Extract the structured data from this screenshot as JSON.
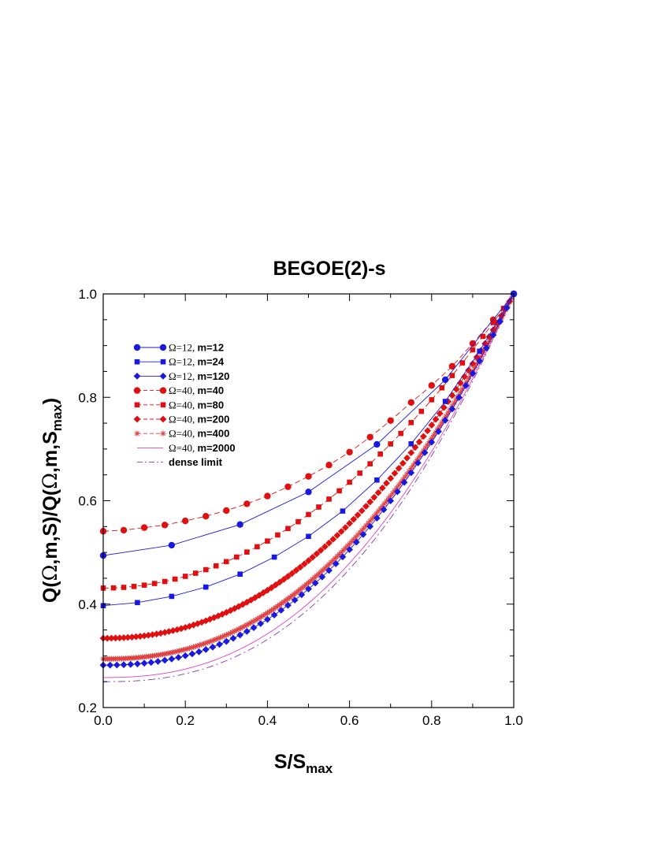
{
  "chart_data": {
    "type": "line",
    "title": "BEGOE(2)-s",
    "xlabel": "S/S_max",
    "ylabel": "Q(Ω,m,S)/Q(Ω,m,S_max)",
    "xlim": [
      0.0,
      1.0
    ],
    "ylim": [
      0.2,
      1.0
    ],
    "x_ticks": [
      "0.0",
      "0.2",
      "0.4",
      "0.6",
      "0.8",
      "1.0"
    ],
    "y_ticks": [
      "0.2",
      "0.4",
      "0.6",
      "0.8",
      "1.0"
    ],
    "grid": false,
    "legend_position": "top-left",
    "series": [
      {
        "name": "Ω=12, m=12",
        "omega_text": "Ω=12, ",
        "m_text": "m=12",
        "color": "#1a1adf",
        "marker": "circle",
        "dash": "solid",
        "line": true,
        "x": [
          0,
          0.1667,
          0.3333,
          0.5,
          0.6667,
          0.8333,
          1.0
        ],
        "y": [
          0.494,
          0.514,
          0.554,
          0.617,
          0.709,
          0.834,
          1.0
        ]
      },
      {
        "name": "Ω=12, m=24",
        "omega_text": "Ω=12, ",
        "m_text": "m=24",
        "color": "#1a1adf",
        "marker": "square",
        "dash": "solid",
        "line": true,
        "x": [
          0,
          0.0833,
          0.1667,
          0.25,
          0.3333,
          0.4167,
          0.5,
          0.5833,
          0.6667,
          0.75,
          0.8333,
          0.9167,
          1.0
        ],
        "y": [
          0.397,
          0.403,
          0.415,
          0.433,
          0.458,
          0.491,
          0.531,
          0.58,
          0.64,
          0.71,
          0.792,
          0.889,
          1.0
        ]
      },
      {
        "name": "Ω=12, m=120",
        "omega_text": "Ω=12, ",
        "m_text": "m=120",
        "color": "#1a1adf",
        "marker": "diamond",
        "dash": "solid",
        "line": true,
        "model": [
          0.282,
          2.285
        ],
        "step": 0.016667
      },
      {
        "name": "Ω=40, m=40",
        "omega_text": "Ω=40, ",
        "m_text": "m=40",
        "color": "#e01010",
        "marker": "circle",
        "dash": "dashed",
        "line": true,
        "x": [
          0,
          0.05,
          0.1,
          0.15,
          0.2,
          0.25,
          0.3,
          0.35,
          0.4,
          0.45,
          0.5,
          0.55,
          0.6,
          0.65,
          0.7,
          0.75,
          0.8,
          0.85,
          0.9,
          0.95,
          1.0
        ],
        "y": [
          0.541,
          0.543,
          0.548,
          0.553,
          0.561,
          0.57,
          0.581,
          0.594,
          0.609,
          0.627,
          0.647,
          0.669,
          0.694,
          0.723,
          0.755,
          0.79,
          0.823,
          0.86,
          0.904,
          0.95,
          1.0
        ]
      },
      {
        "name": "Ω=40, m=80",
        "omega_text": "Ω=40, ",
        "m_text": "m=80",
        "color": "#e01010",
        "marker": "square",
        "dash": "dashed",
        "line": true,
        "model": [
          0.431,
          2.0
        ],
        "step": 0.025
      },
      {
        "name": "Ω=40, m=200",
        "omega_text": "Ω=40, ",
        "m_text": "m=200",
        "color": "#e01010",
        "marker": "diamond",
        "dash": "dashed",
        "line": true,
        "model": [
          0.334,
          2.15
        ],
        "step": 0.01
      },
      {
        "name": "Ω=40, m=400",
        "omega_text": "Ω=40, ",
        "m_text": "m=400",
        "color": "#e04040",
        "marker": "asterisk",
        "dash": "dashed",
        "line": true,
        "model": [
          0.294,
          2.26
        ],
        "step": 0.005
      },
      {
        "name": "Ω=40, m=2000",
        "omega_text": "Ω=40, ",
        "m_text": "m=2000",
        "color": "#e040c0",
        "marker": "none",
        "dash": "solid",
        "line": true,
        "model": [
          0.258,
          2.37
        ],
        "step": 0.01
      },
      {
        "name": "dense limit",
        "omega_text": "",
        "m_text": "dense limit",
        "color": "#7a3fb0",
        "marker": "none",
        "dash": "dashdot",
        "line": true,
        "model": [
          0.25,
          2.42
        ],
        "step": 0.01
      }
    ]
  }
}
